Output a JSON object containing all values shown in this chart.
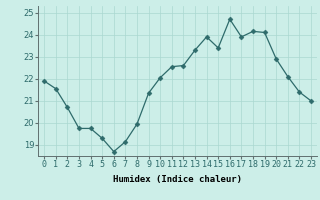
{
  "x": [
    0,
    1,
    2,
    3,
    4,
    5,
    6,
    7,
    8,
    9,
    10,
    11,
    12,
    13,
    14,
    15,
    16,
    17,
    18,
    19,
    20,
    21,
    22,
    23
  ],
  "y": [
    21.9,
    21.55,
    20.7,
    19.75,
    19.75,
    19.3,
    18.7,
    19.15,
    19.95,
    21.35,
    22.05,
    22.55,
    22.6,
    23.3,
    23.9,
    23.4,
    24.7,
    23.9,
    24.15,
    24.1,
    22.9,
    22.1,
    21.4,
    21.0
  ],
  "line_color": "#2e6b6b",
  "marker": "D",
  "marker_size": 2.5,
  "bg_color": "#cceee8",
  "grid_color": "#aad8d0",
  "xlabel": "Humidex (Indice chaleur)",
  "ylim": [
    18.5,
    25.3
  ],
  "xlim": [
    -0.5,
    23.5
  ],
  "xtick_labels": [
    "0",
    "1",
    "2",
    "3",
    "4",
    "5",
    "6",
    "7",
    "8",
    "9",
    "10",
    "11",
    "12",
    "13",
    "14",
    "15",
    "16",
    "17",
    "18",
    "19",
    "20",
    "21",
    "22",
    "23"
  ],
  "yticks": [
    19,
    20,
    21,
    22,
    23,
    24,
    25
  ],
  "xlabel_fontsize": 6.5,
  "tick_fontsize": 6.0
}
